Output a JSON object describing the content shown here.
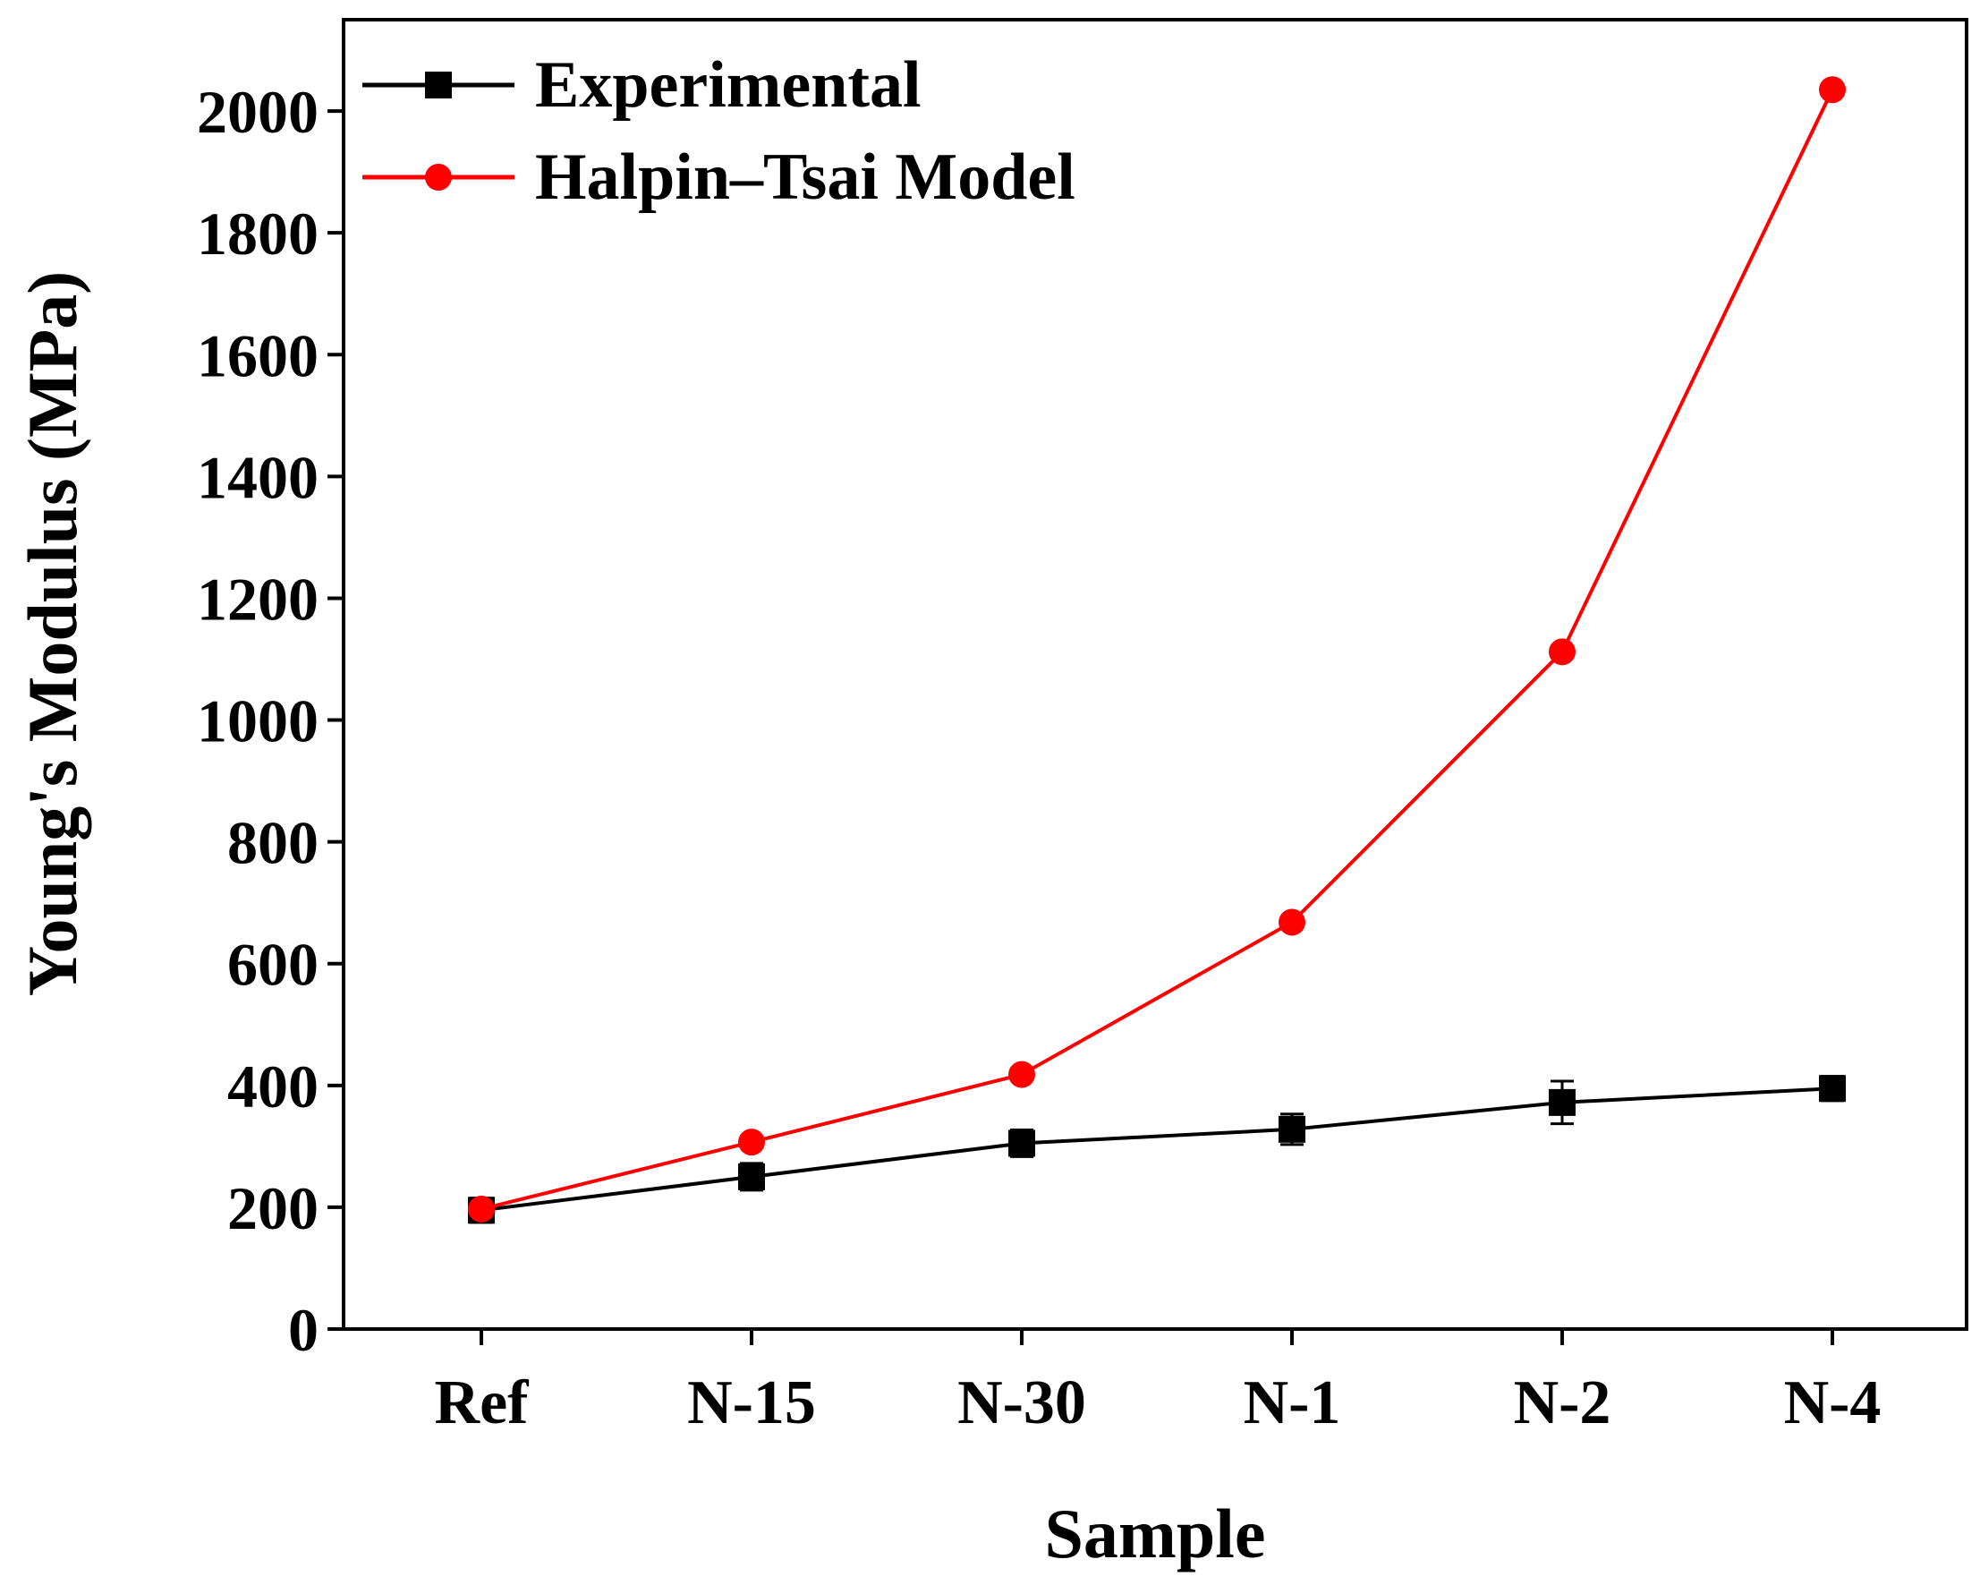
{
  "chart_data": {
    "type": "line",
    "title": "",
    "xlabel": "Sample",
    "ylabel": "Young's Modulus (MPa)",
    "categories": [
      "Ref",
      "N-15",
      "N-30",
      "N-1",
      "N-2",
      "N-4"
    ],
    "ylim": [
      0,
      2150
    ],
    "yticks": [
      0,
      200,
      400,
      600,
      800,
      1000,
      1200,
      1400,
      1600,
      1800,
      2000
    ],
    "grid": false,
    "legend_position": "top-left",
    "series": [
      {
        "name": "Experimental",
        "color": "#000000",
        "marker": "square",
        "values": [
          195,
          250,
          305,
          328,
          372,
          395
        ],
        "errors": [
          20,
          22,
          22,
          25,
          35,
          20
        ]
      },
      {
        "name": "Halpin–Tsai Model",
        "color": "#ff0000",
        "marker": "circle",
        "values": [
          197,
          307,
          418,
          668,
          1112,
          2035
        ],
        "errors": null
      }
    ]
  }
}
